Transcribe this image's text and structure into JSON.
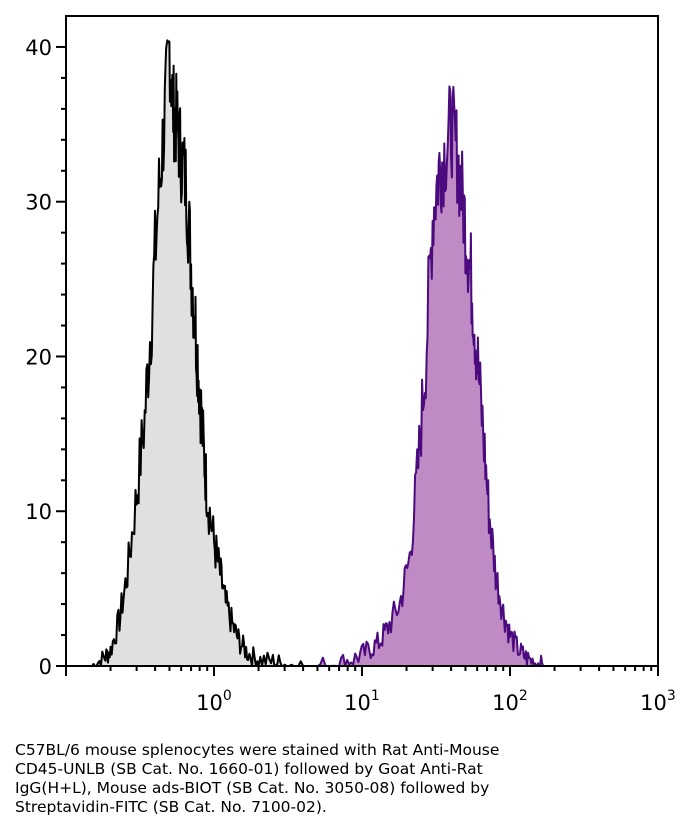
{
  "chart_data": {
    "type": "area",
    "title": "",
    "xlabel": "",
    "ylabel": "",
    "x_scale": "log",
    "xlim": [
      0.1,
      1000
    ],
    "ylim": [
      0,
      42
    ],
    "x_ticks": [
      {
        "base": "10",
        "exp": "0"
      },
      {
        "base": "10",
        "exp": "1"
      },
      {
        "base": "10",
        "exp": "2"
      },
      {
        "base": "10",
        "exp": "3"
      }
    ],
    "y_ticks": [
      "0",
      "10",
      "20",
      "30",
      "40"
    ],
    "grid": false,
    "legend": "none",
    "series": [
      {
        "fill": "#e0e0e0",
        "stroke": "#000000",
        "x": [
          0.15,
          0.18,
          0.2,
          0.23,
          0.26,
          0.3,
          0.34,
          0.38,
          0.42,
          0.46,
          0.5,
          0.53,
          0.56,
          0.6,
          0.65,
          0.7,
          0.75,
          0.8,
          0.85,
          0.9,
          1.0,
          1.1,
          1.2,
          1.35,
          1.5,
          1.7,
          2.0,
          2.5,
          3.0,
          4.0
        ],
        "y": [
          0,
          0.5,
          1,
          3,
          6,
          11,
          16,
          23,
          30,
          35,
          40,
          36,
          35,
          33,
          31,
          26,
          22,
          18,
          14,
          11,
          8,
          6,
          4,
          2.5,
          1.5,
          0.8,
          0.4,
          0.3,
          0.1,
          0
        ]
      },
      {
        "fill": "#c08ac4",
        "stroke": "#4b0a7e",
        "x": [
          5,
          7,
          9,
          11,
          13,
          15,
          18,
          21,
          24,
          27,
          30,
          33,
          36,
          40,
          44,
          48,
          52,
          56,
          60,
          66,
          72,
          80,
          90,
          100,
          115,
          130,
          150,
          170
        ],
        "y": [
          0,
          0.2,
          0.5,
          1,
          1.5,
          2.5,
          4,
          7,
          13,
          20,
          29,
          32,
          33,
          35,
          33,
          30,
          27,
          24,
          20,
          15,
          10,
          6,
          3.5,
          2,
          1,
          0.5,
          0.2,
          0
        ]
      }
    ]
  },
  "caption": {
    "line1": "C57BL/6 mouse splenocytes were stained with Rat Anti-Mouse",
    "line2": "CD45-UNLB (SB Cat. No. 1660-01) followed by Goat Anti-Rat",
    "line3": "IgG(H+L), Mouse ads-BIOT (SB Cat. No. 3050-08) followed by",
    "line4": "Streptavidin-FITC (SB Cat. No. 7100-02)."
  }
}
